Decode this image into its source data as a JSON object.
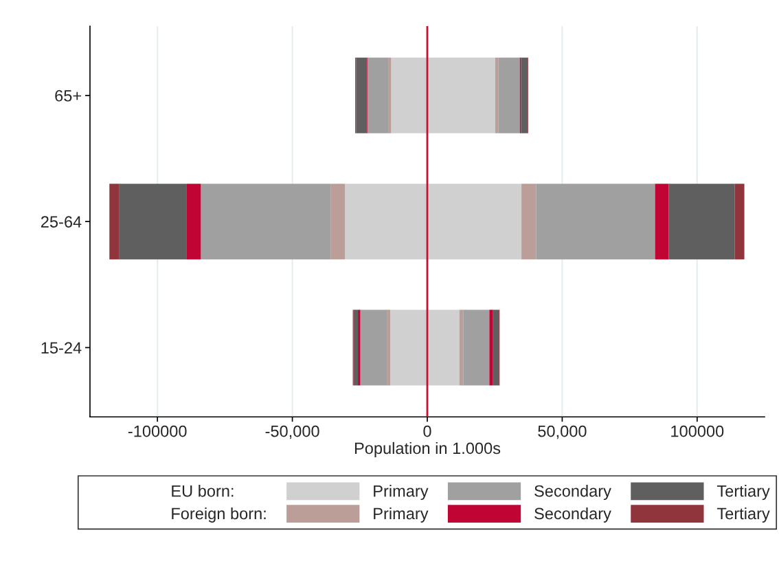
{
  "chart_data": {
    "type": "bar",
    "orientation": "horizontal",
    "stacked": true,
    "categories": [
      "65+",
      "25-64",
      "15-24"
    ],
    "xlabel": "Population in 1.000s",
    "xlim": [
      -125000,
      125000
    ],
    "xticks": [
      {
        "value": -100000,
        "label": "-100000"
      },
      {
        "value": -50000,
        "label": "-50,000"
      },
      0,
      {
        "value": 50000,
        "label": "50,000"
      },
      {
        "value": 100000,
        "label": "100000"
      }
    ],
    "grid": "x",
    "legend": "bottom",
    "legend_title": [
      "EU born:",
      "Foreign born:"
    ],
    "ref_lines": [
      {
        "axis": "x",
        "value": 0,
        "color": "#c8102e"
      }
    ],
    "series": [
      {
        "color": "#d0d0d0",
        "values": [
          -13400,
          -30500,
          -13700
        ]
      },
      {
        "color": "#bc9e99",
        "values": [
          -900,
          -5200,
          -1100
        ]
      },
      {
        "color": "#a0a0a0",
        "values": [
          -7900,
          -48200,
          -10000
        ]
      },
      {
        "color": "#c00535",
        "values": [
          -400,
          -5400,
          -900
        ]
      },
      {
        "color": "#5f5f5f",
        "values": [
          -3800,
          -24800,
          -1600
        ]
      },
      {
        "color": "#90353b",
        "values": [
          -300,
          -3700,
          -300
        ]
      },
      {
        "name": "Primary",
        "color": "#d0d0d0",
        "values": [
          25200,
          34900,
          11900
        ]
      },
      {
        "name": "Primary",
        "color": "#bc9e99",
        "values": [
          1200,
          5400,
          1400
        ]
      },
      {
        "name": "Secondary",
        "color": "#a0a0a0",
        "values": [
          7900,
          44100,
          9700
        ]
      },
      {
        "name": "Secondary",
        "color": "#c00535",
        "values": [
          400,
          5100,
          1200
        ]
      },
      {
        "name": "Tertiary",
        "color": "#5f5f5f",
        "values": [
          2500,
          24400,
          2300
        ]
      },
      {
        "name": "Tertiary",
        "color": "#90353b",
        "values": [
          200,
          3600,
          300
        ]
      }
    ]
  }
}
